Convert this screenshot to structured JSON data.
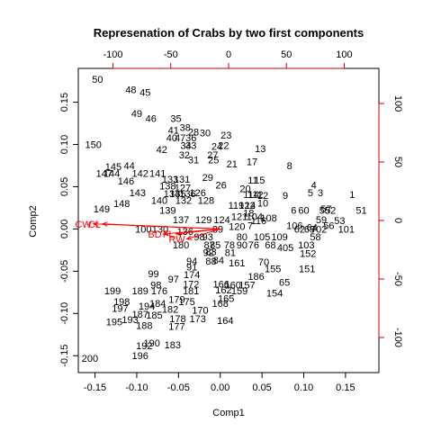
{
  "chart_data": {
    "type": "scatter",
    "subtype": "biplot",
    "title": "Represenation of Crabs by two first components",
    "xlabel": "Comp1",
    "ylabel": "Comp2",
    "xlim": [
      -0.17,
      0.19
    ],
    "ylim": [
      -0.17,
      0.19
    ],
    "x_ticks": [
      -0.15,
      -0.1,
      -0.05,
      0.0,
      0.05,
      0.1,
      0.15
    ],
    "y_ticks": [
      -0.15,
      -0.1,
      -0.05,
      0.0,
      0.05,
      0.1,
      0.15
    ],
    "secondary_ticks": [
      -100,
      -50,
      0,
      50,
      100
    ],
    "secondary_color": "#cc0000",
    "vector_color": "#ff0000",
    "points": [
      {
        "label": "50",
        "x": -0.147,
        "y": 0.177
      },
      {
        "label": "48",
        "x": -0.107,
        "y": 0.165
      },
      {
        "label": "45",
        "x": -0.09,
        "y": 0.162
      },
      {
        "label": "49",
        "x": -0.1,
        "y": 0.137
      },
      {
        "label": "46",
        "x": -0.083,
        "y": 0.131
      },
      {
        "label": "35",
        "x": -0.053,
        "y": 0.131
      },
      {
        "label": "41",
        "x": -0.056,
        "y": 0.117
      },
      {
        "label": "38",
        "x": -0.042,
        "y": 0.12
      },
      {
        "label": "28",
        "x": -0.032,
        "y": 0.115
      },
      {
        "label": "30",
        "x": -0.018,
        "y": 0.114
      },
      {
        "label": "40",
        "x": -0.058,
        "y": 0.108
      },
      {
        "label": "47",
        "x": -0.048,
        "y": 0.108
      },
      {
        "label": "36",
        "x": -0.035,
        "y": 0.108
      },
      {
        "label": "23",
        "x": 0.007,
        "y": 0.111
      },
      {
        "label": "150",
        "x": -0.152,
        "y": 0.1
      },
      {
        "label": "42",
        "x": -0.07,
        "y": 0.094
      },
      {
        "label": "34",
        "x": -0.041,
        "y": 0.099
      },
      {
        "label": "33",
        "x": -0.035,
        "y": 0.099
      },
      {
        "label": "22",
        "x": 0.004,
        "y": 0.099
      },
      {
        "label": "24",
        "x": -0.004,
        "y": 0.098
      },
      {
        "label": "27",
        "x": -0.009,
        "y": 0.088
      },
      {
        "label": "13",
        "x": 0.048,
        "y": 0.095
      },
      {
        "label": "32",
        "x": -0.043,
        "y": 0.088
      },
      {
        "label": "31",
        "x": -0.032,
        "y": 0.082
      },
      {
        "label": "25",
        "x": -0.008,
        "y": 0.082
      },
      {
        "label": "21",
        "x": 0.014,
        "y": 0.077
      },
      {
        "label": "17",
        "x": 0.038,
        "y": 0.08
      },
      {
        "label": "8",
        "x": 0.083,
        "y": 0.075
      },
      {
        "label": "145",
        "x": -0.128,
        "y": 0.074
      },
      {
        "label": "44",
        "x": -0.109,
        "y": 0.075
      },
      {
        "label": "147",
        "x": -0.139,
        "y": 0.066
      },
      {
        "label": "142",
        "x": -0.096,
        "y": 0.066
      },
      {
        "label": "141",
        "x": -0.075,
        "y": 0.066
      },
      {
        "label": "144",
        "x": -0.13,
        "y": 0.066
      },
      {
        "label": "146",
        "x": -0.113,
        "y": 0.057
      },
      {
        "label": "133",
        "x": -0.06,
        "y": 0.059
      },
      {
        "label": "131",
        "x": -0.046,
        "y": 0.059
      },
      {
        "label": "29",
        "x": -0.015,
        "y": 0.061
      },
      {
        "label": "11",
        "x": 0.039,
        "y": 0.058
      },
      {
        "label": "15",
        "x": 0.047,
        "y": 0.058
      },
      {
        "label": "26",
        "x": 0.001,
        "y": 0.052
      },
      {
        "label": "138",
        "x": -0.063,
        "y": 0.051
      },
      {
        "label": "127",
        "x": -0.045,
        "y": 0.049
      },
      {
        "label": "20",
        "x": 0.03,
        "y": 0.048
      },
      {
        "label": "4",
        "x": 0.112,
        "y": 0.052
      },
      {
        "label": "143",
        "x": -0.099,
        "y": 0.043
      },
      {
        "label": "134",
        "x": -0.058,
        "y": 0.042
      },
      {
        "label": "135",
        "x": -0.051,
        "y": 0.042
      },
      {
        "label": "136",
        "x": -0.039,
        "y": 0.042
      },
      {
        "label": "126",
        "x": -0.027,
        "y": 0.043
      },
      {
        "label": "114",
        "x": 0.037,
        "y": 0.041
      },
      {
        "label": "112",
        "x": 0.042,
        "y": 0.041
      },
      {
        "label": "12",
        "x": 0.051,
        "y": 0.04
      },
      {
        "label": "9",
        "x": 0.078,
        "y": 0.04
      },
      {
        "label": "5",
        "x": 0.108,
        "y": 0.043
      },
      {
        "label": "3",
        "x": 0.12,
        "y": 0.043
      },
      {
        "label": "1",
        "x": 0.158,
        "y": 0.041
      },
      {
        "label": "148",
        "x": -0.118,
        "y": 0.03
      },
      {
        "label": "140",
        "x": -0.073,
        "y": 0.034
      },
      {
        "label": "132",
        "x": -0.044,
        "y": 0.034
      },
      {
        "label": "128",
        "x": -0.017,
        "y": 0.034
      },
      {
        "label": "119",
        "x": 0.019,
        "y": 0.028
      },
      {
        "label": "122",
        "x": 0.032,
        "y": 0.028
      },
      {
        "label": "14",
        "x": 0.036,
        "y": 0.028
      },
      {
        "label": "10",
        "x": 0.051,
        "y": 0.031
      },
      {
        "label": "6",
        "x": 0.088,
        "y": 0.022
      },
      {
        "label": "55",
        "x": 0.125,
        "y": 0.022
      },
      {
        "label": "57",
        "x": 0.127,
        "y": 0.024
      },
      {
        "label": "52",
        "x": 0.132,
        "y": 0.022
      },
      {
        "label": "51",
        "x": 0.169,
        "y": 0.022
      },
      {
        "label": "149",
        "x": -0.142,
        "y": 0.024
      },
      {
        "label": "139",
        "x": -0.063,
        "y": 0.022
      },
      {
        "label": "124",
        "x": 0.002,
        "y": 0.011
      },
      {
        "label": "60",
        "x": 0.1,
        "y": 0.022
      },
      {
        "label": "18",
        "x": 0.034,
        "y": 0.019
      },
      {
        "label": "59",
        "x": 0.121,
        "y": 0.011
      },
      {
        "label": "53",
        "x": 0.143,
        "y": 0.01
      },
      {
        "label": "137",
        "x": -0.047,
        "y": 0.011
      },
      {
        "label": "129",
        "x": -0.02,
        "y": 0.011
      },
      {
        "label": "121",
        "x": 0.023,
        "y": 0.015
      },
      {
        "label": "104",
        "x": 0.041,
        "y": 0.015
      },
      {
        "label": "116",
        "x": 0.046,
        "y": 0.01
      },
      {
        "label": "108",
        "x": 0.058,
        "y": 0.013
      },
      {
        "label": "56",
        "x": 0.13,
        "y": 0.004
      },
      {
        "label": "100",
        "x": -0.092,
        "y": 0.0
      },
      {
        "label": "130",
        "x": -0.072,
        "y": 0.0
      },
      {
        "label": "89",
        "x": -0.003,
        "y": 0.0
      },
      {
        "label": "120",
        "x": 0.02,
        "y": 0.003
      },
      {
        "label": "7",
        "x": 0.036,
        "y": 0.004
      },
      {
        "label": "106",
        "x": 0.089,
        "y": 0.004
      },
      {
        "label": "62",
        "x": 0.095,
        "y": 0.0
      },
      {
        "label": "69",
        "x": 0.107,
        "y": 0.0
      },
      {
        "label": "64",
        "x": 0.11,
        "y": 0.002
      },
      {
        "label": "702",
        "x": 0.118,
        "y": 0.0
      },
      {
        "label": "101",
        "x": 0.151,
        "y": 0.0
      },
      {
        "label": "136",
        "x": -0.042,
        "y": -0.003
      },
      {
        "label": "98",
        "x": -0.025,
        "y": -0.009
      },
      {
        "label": "93",
        "x": -0.015,
        "y": -0.009
      },
      {
        "label": "80",
        "x": 0.026,
        "y": -0.009
      },
      {
        "label": "105",
        "x": 0.05,
        "y": -0.009
      },
      {
        "label": "109",
        "x": 0.071,
        "y": -0.009
      },
      {
        "label": "58",
        "x": 0.114,
        "y": -0.009
      },
      {
        "label": "180",
        "x": -0.047,
        "y": -0.019
      },
      {
        "label": "87",
        "x": -0.013,
        "y": -0.019
      },
      {
        "label": "85",
        "x": -0.006,
        "y": -0.019
      },
      {
        "label": "78",
        "x": 0.011,
        "y": -0.019
      },
      {
        "label": "90",
        "x": 0.026,
        "y": -0.019
      },
      {
        "label": "76",
        "x": 0.04,
        "y": -0.019
      },
      {
        "label": "68",
        "x": 0.06,
        "y": -0.019
      },
      {
        "label": "103",
        "x": 0.103,
        "y": -0.019
      },
      {
        "label": "405",
        "x": 0.078,
        "y": -0.022
      },
      {
        "label": "92",
        "x": -0.014,
        "y": -0.028
      },
      {
        "label": "81",
        "x": 0.012,
        "y": -0.028
      },
      {
        "label": "83",
        "x": -0.011,
        "y": -0.027
      },
      {
        "label": "152",
        "x": 0.105,
        "y": -0.029
      },
      {
        "label": "94",
        "x": -0.034,
        "y": -0.038
      },
      {
        "label": "88",
        "x": -0.011,
        "y": -0.038
      },
      {
        "label": "84",
        "x": -0.002,
        "y": -0.037
      },
      {
        "label": "161",
        "x": 0.02,
        "y": -0.04
      },
      {
        "label": "70",
        "x": 0.052,
        "y": -0.039
      },
      {
        "label": "151",
        "x": 0.104,
        "y": -0.047
      },
      {
        "label": "91",
        "x": -0.034,
        "y": -0.045
      },
      {
        "label": "155",
        "x": 0.063,
        "y": -0.047
      },
      {
        "label": "99",
        "x": -0.08,
        "y": -0.053
      },
      {
        "label": "97",
        "x": -0.056,
        "y": -0.059
      },
      {
        "label": "174",
        "x": -0.034,
        "y": -0.054
      },
      {
        "label": "186",
        "x": 0.043,
        "y": -0.056
      },
      {
        "label": "65",
        "x": 0.077,
        "y": -0.063
      },
      {
        "label": "98",
        "x": -0.077,
        "y": -0.066
      },
      {
        "label": "172",
        "x": -0.035,
        "y": -0.065
      },
      {
        "label": "166",
        "x": 0.001,
        "y": -0.065
      },
      {
        "label": "160",
        "x": 0.015,
        "y": -0.066
      },
      {
        "label": "157",
        "x": 0.032,
        "y": -0.066
      },
      {
        "label": "154",
        "x": 0.065,
        "y": -0.076
      },
      {
        "label": "199",
        "x": -0.129,
        "y": -0.073
      },
      {
        "label": "189",
        "x": -0.096,
        "y": -0.073
      },
      {
        "label": "176",
        "x": -0.073,
        "y": -0.073
      },
      {
        "label": "181",
        "x": -0.035,
        "y": -0.073
      },
      {
        "label": "162",
        "x": 0.004,
        "y": -0.072
      },
      {
        "label": "159",
        "x": 0.023,
        "y": -0.073
      },
      {
        "label": "198",
        "x": -0.118,
        "y": -0.086
      },
      {
        "label": "179",
        "x": -0.052,
        "y": -0.083
      },
      {
        "label": "165",
        "x": 0.007,
        "y": -0.082
      },
      {
        "label": "194",
        "x": -0.088,
        "y": -0.091
      },
      {
        "label": "184",
        "x": -0.075,
        "y": -0.088
      },
      {
        "label": "175",
        "x": -0.04,
        "y": -0.086
      },
      {
        "label": "168",
        "x": 0.0,
        "y": -0.088
      },
      {
        "label": "197",
        "x": -0.12,
        "y": -0.094
      },
      {
        "label": "187",
        "x": -0.096,
        "y": -0.101
      },
      {
        "label": "182",
        "x": -0.06,
        "y": -0.095
      },
      {
        "label": "170",
        "x": -0.024,
        "y": -0.096
      },
      {
        "label": "185",
        "x": -0.079,
        "y": -0.102
      },
      {
        "label": "178",
        "x": -0.051,
        "y": -0.106
      },
      {
        "label": "173",
        "x": -0.027,
        "y": -0.106
      },
      {
        "label": "164",
        "x": 0.006,
        "y": -0.108
      },
      {
        "label": "195",
        "x": -0.127,
        "y": -0.11
      },
      {
        "label": "193",
        "x": -0.108,
        "y": -0.107
      },
      {
        "label": "188",
        "x": -0.091,
        "y": -0.114
      },
      {
        "label": "177",
        "x": -0.052,
        "y": -0.115
      },
      {
        "label": "190",
        "x": -0.082,
        "y": -0.135
      },
      {
        "label": "192",
        "x": -0.091,
        "y": -0.138
      },
      {
        "label": "183",
        "x": -0.057,
        "y": -0.137
      },
      {
        "label": "196",
        "x": -0.096,
        "y": -0.15
      },
      {
        "label": "200",
        "x": -0.156,
        "y": -0.153
      }
    ],
    "vectors": [
      {
        "label": "CW",
        "x": -0.152,
        "y": 0.006
      },
      {
        "label": "CL",
        "x": -0.141,
        "y": 0.006
      },
      {
        "label": "RW",
        "x": -0.04,
        "y": -0.012
      },
      {
        "label": "BD",
        "x": -0.068,
        "y": -0.006
      },
      {
        "label": "FL",
        "x": -0.053,
        "y": -0.006
      }
    ]
  }
}
